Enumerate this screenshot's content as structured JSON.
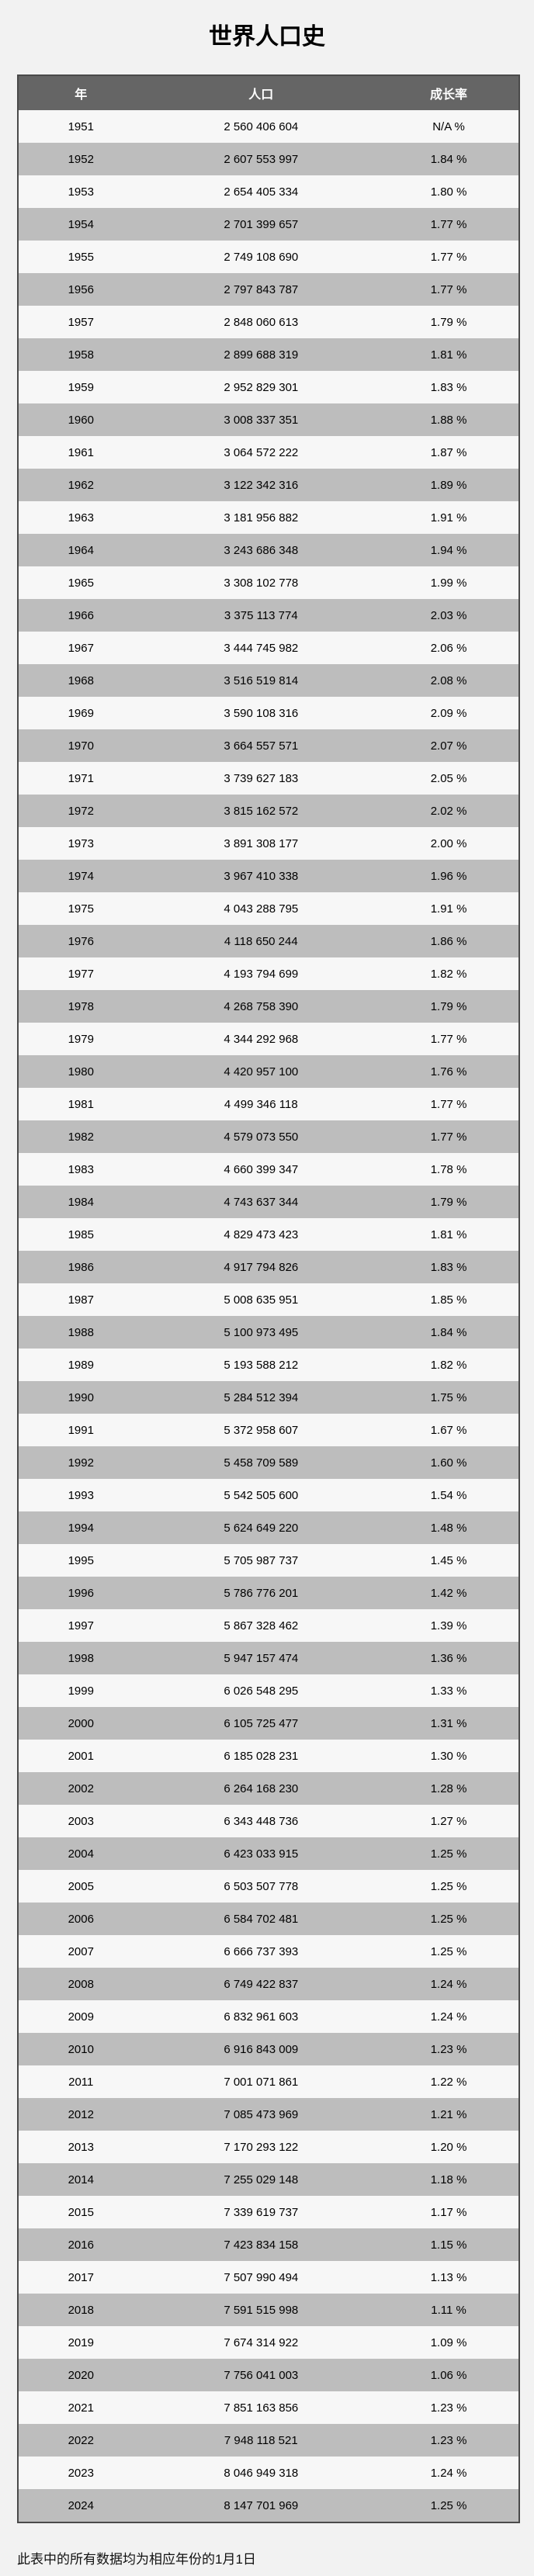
{
  "page": {
    "title": "世界人口史",
    "footnote": "此表中的所有数据均为相应年份的1月1日"
  },
  "colors": {
    "page_background": "#f2f2f2",
    "header_background": "#656565",
    "header_text": "#ffffff",
    "row_light": "#f7f7f7",
    "row_dark": "#bdbdbd",
    "table_border": "#4a4a4a"
  },
  "chart_data": {
    "type": "table",
    "title": "世界人口史",
    "columns": [
      "年",
      "人口",
      "成长率"
    ],
    "rows": [
      [
        "1951",
        "2 560 406 604",
        "N/A %"
      ],
      [
        "1952",
        "2 607 553 997",
        "1.84 %"
      ],
      [
        "1953",
        "2 654 405 334",
        "1.80 %"
      ],
      [
        "1954",
        "2 701 399 657",
        "1.77 %"
      ],
      [
        "1955",
        "2 749 108 690",
        "1.77 %"
      ],
      [
        "1956",
        "2 797 843 787",
        "1.77 %"
      ],
      [
        "1957",
        "2 848 060 613",
        "1.79 %"
      ],
      [
        "1958",
        "2 899 688 319",
        "1.81 %"
      ],
      [
        "1959",
        "2 952 829 301",
        "1.83 %"
      ],
      [
        "1960",
        "3 008 337 351",
        "1.88 %"
      ],
      [
        "1961",
        "3 064 572 222",
        "1.87 %"
      ],
      [
        "1962",
        "3 122 342 316",
        "1.89 %"
      ],
      [
        "1963",
        "3 181 956 882",
        "1.91 %"
      ],
      [
        "1964",
        "3 243 686 348",
        "1.94 %"
      ],
      [
        "1965",
        "3 308 102 778",
        "1.99 %"
      ],
      [
        "1966",
        "3 375 113 774",
        "2.03 %"
      ],
      [
        "1967",
        "3 444 745 982",
        "2.06 %"
      ],
      [
        "1968",
        "3 516 519 814",
        "2.08 %"
      ],
      [
        "1969",
        "3 590 108 316",
        "2.09 %"
      ],
      [
        "1970",
        "3 664 557 571",
        "2.07 %"
      ],
      [
        "1971",
        "3 739 627 183",
        "2.05 %"
      ],
      [
        "1972",
        "3 815 162 572",
        "2.02 %"
      ],
      [
        "1973",
        "3 891 308 177",
        "2.00 %"
      ],
      [
        "1974",
        "3 967 410 338",
        "1.96 %"
      ],
      [
        "1975",
        "4 043 288 795",
        "1.91 %"
      ],
      [
        "1976",
        "4 118 650 244",
        "1.86 %"
      ],
      [
        "1977",
        "4 193 794 699",
        "1.82 %"
      ],
      [
        "1978",
        "4 268 758 390",
        "1.79 %"
      ],
      [
        "1979",
        "4 344 292 968",
        "1.77 %"
      ],
      [
        "1980",
        "4 420 957 100",
        "1.76 %"
      ],
      [
        "1981",
        "4 499 346 118",
        "1.77 %"
      ],
      [
        "1982",
        "4 579 073 550",
        "1.77 %"
      ],
      [
        "1983",
        "4 660 399 347",
        "1.78 %"
      ],
      [
        "1984",
        "4 743 637 344",
        "1.79 %"
      ],
      [
        "1985",
        "4 829 473 423",
        "1.81 %"
      ],
      [
        "1986",
        "4 917 794 826",
        "1.83 %"
      ],
      [
        "1987",
        "5 008 635 951",
        "1.85 %"
      ],
      [
        "1988",
        "5 100 973 495",
        "1.84 %"
      ],
      [
        "1989",
        "5 193 588 212",
        "1.82 %"
      ],
      [
        "1990",
        "5 284 512 394",
        "1.75 %"
      ],
      [
        "1991",
        "5 372 958 607",
        "1.67 %"
      ],
      [
        "1992",
        "5 458 709 589",
        "1.60 %"
      ],
      [
        "1993",
        "5 542 505 600",
        "1.54 %"
      ],
      [
        "1994",
        "5 624 649 220",
        "1.48 %"
      ],
      [
        "1995",
        "5 705 987 737",
        "1.45 %"
      ],
      [
        "1996",
        "5 786 776 201",
        "1.42 %"
      ],
      [
        "1997",
        "5 867 328 462",
        "1.39 %"
      ],
      [
        "1998",
        "5 947 157 474",
        "1.36 %"
      ],
      [
        "1999",
        "6 026 548 295",
        "1.33 %"
      ],
      [
        "2000",
        "6 105 725 477",
        "1.31 %"
      ],
      [
        "2001",
        "6 185 028 231",
        "1.30 %"
      ],
      [
        "2002",
        "6 264 168 230",
        "1.28 %"
      ],
      [
        "2003",
        "6 343 448 736",
        "1.27 %"
      ],
      [
        "2004",
        "6 423 033 915",
        "1.25 %"
      ],
      [
        "2005",
        "6 503 507 778",
        "1.25 %"
      ],
      [
        "2006",
        "6 584 702 481",
        "1.25 %"
      ],
      [
        "2007",
        "6 666 737 393",
        "1.25 %"
      ],
      [
        "2008",
        "6 749 422 837",
        "1.24 %"
      ],
      [
        "2009",
        "6 832 961 603",
        "1.24 %"
      ],
      [
        "2010",
        "6 916 843 009",
        "1.23 %"
      ],
      [
        "2011",
        "7 001 071 861",
        "1.22 %"
      ],
      [
        "2012",
        "7 085 473 969",
        "1.21 %"
      ],
      [
        "2013",
        "7 170 293 122",
        "1.20 %"
      ],
      [
        "2014",
        "7 255 029 148",
        "1.18 %"
      ],
      [
        "2015",
        "7 339 619 737",
        "1.17 %"
      ],
      [
        "2016",
        "7 423 834 158",
        "1.15 %"
      ],
      [
        "2017",
        "7 507 990 494",
        "1.13 %"
      ],
      [
        "2018",
        "7 591 515 998",
        "1.11 %"
      ],
      [
        "2019",
        "7 674 314 922",
        "1.09 %"
      ],
      [
        "2020",
        "7 756 041 003",
        "1.06 %"
      ],
      [
        "2021",
        "7 851 163 856",
        "1.23 %"
      ],
      [
        "2022",
        "7 948 118 521",
        "1.23 %"
      ],
      [
        "2023",
        "8 046 949 318",
        "1.24 %"
      ],
      [
        "2024",
        "8 147 701 969",
        "1.25 %"
      ]
    ]
  }
}
